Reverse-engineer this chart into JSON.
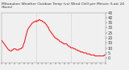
{
  "title": "Milwaukee Weather Outdoor Temp (vs) Wind Chill per Minute (Last 24 Hours)",
  "line_color": "#ff0000",
  "bg_color": "#f0f0f0",
  "plot_bg_color": "#f0f0f0",
  "ylim": [
    -5,
    45
  ],
  "yticks": [
    0,
    5,
    10,
    15,
    20,
    25,
    30,
    35,
    40,
    45
  ],
  "y_values": [
    18,
    17,
    16,
    15,
    14,
    13,
    12,
    11,
    10,
    9,
    8,
    8,
    7,
    7,
    7,
    8,
    8,
    9,
    9,
    9,
    9,
    8,
    8,
    8,
    8,
    9,
    9,
    9,
    10,
    10,
    12,
    14,
    16,
    19,
    22,
    25,
    27,
    29,
    30,
    31,
    32,
    33,
    34,
    35,
    35,
    36,
    36,
    36,
    37,
    36,
    37,
    37,
    38,
    38,
    37,
    37,
    37,
    36,
    36,
    35,
    35,
    34,
    33,
    32,
    31,
    30,
    28,
    27,
    26,
    25,
    24,
    23,
    22,
    21,
    20,
    20,
    19,
    19,
    18,
    18,
    17,
    16,
    16,
    16,
    15,
    15,
    14,
    14,
    14,
    14,
    14,
    13,
    12,
    12,
    11,
    11,
    10,
    10,
    10,
    10,
    9,
    9,
    9,
    8,
    8,
    8,
    7,
    7,
    7,
    6,
    6,
    6,
    6,
    5,
    5,
    5,
    5,
    5,
    4,
    4,
    4,
    4,
    4,
    3,
    3,
    3,
    3,
    3,
    3,
    2,
    2,
    2,
    2,
    2,
    2,
    2,
    2,
    2,
    2,
    2,
    2,
    2,
    3,
    3,
    3
  ],
  "vline_positions": [
    48,
    96
  ],
  "vline_color": "#aaaaaa",
  "line_width": 0.7,
  "tick_fontsize": 3.5,
  "title_fontsize": 3.2,
  "num_xticks": 24
}
